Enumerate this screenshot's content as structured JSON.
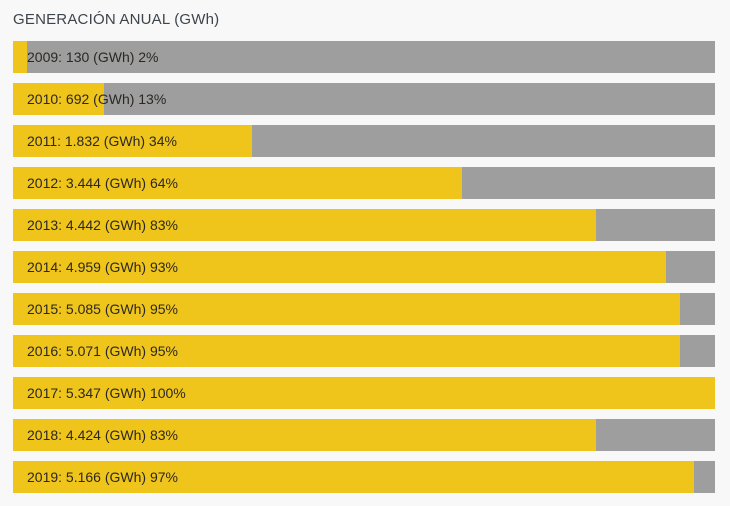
{
  "title": "GENERACIÓN ANUAL (GWh)",
  "colors": {
    "bar_fill": "#F0C51B",
    "bar_track": "#9E9E9E",
    "background": "#F8F8F8",
    "title_text": "#3E444C",
    "bar_text": "#2B2823"
  },
  "chart_data": {
    "type": "bar",
    "orientation": "horizontal",
    "title": "GENERACIÓN ANUAL (GWh)",
    "unit": "GWh",
    "categories": [
      "2009",
      "2010",
      "2011",
      "2012",
      "2013",
      "2014",
      "2015",
      "2016",
      "2017",
      "2018",
      "2019"
    ],
    "values": [
      130,
      692,
      1832,
      3444,
      4442,
      4959,
      5085,
      5071,
      5347,
      4424,
      5166
    ],
    "percentages": [
      2,
      13,
      34,
      64,
      83,
      93,
      95,
      95,
      100,
      83,
      97
    ],
    "labels": [
      "2009: 130 (GWh) 2%",
      "2010: 692 (GWh) 13%",
      "2011: 1.832 (GWh) 34%",
      "2012: 3.444 (GWh) 64%",
      "2013: 4.442 (GWh) 83%",
      "2014: 4.959 (GWh) 93%",
      "2015: 5.085 (GWh) 95%",
      "2016: 5.071 (GWh) 95%",
      "2017: 5.347 (GWh) 100%",
      "2018: 4.424 (GWh) 83%",
      "2019: 5.166 (GWh) 97%"
    ],
    "xlim": [
      0,
      5347
    ],
    "legend": "none",
    "grid": false
  }
}
